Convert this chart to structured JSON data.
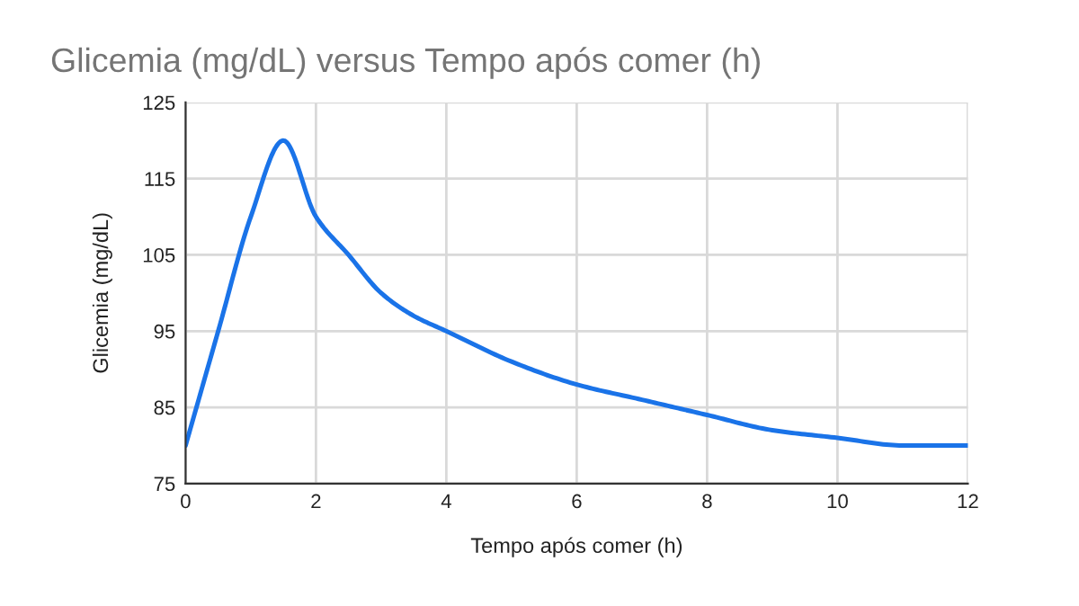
{
  "chart_data": {
    "type": "line",
    "title": "Glicemia (mg/dL) versus Tempo após comer (h)",
    "xlabel": "Tempo após comer (h)",
    "ylabel": "Glicemia (mg/dL)",
    "x": [
      0,
      0.5,
      1,
      1.5,
      2,
      2.5,
      3,
      3.5,
      4,
      5,
      6,
      7,
      8,
      9,
      10,
      11,
      12
    ],
    "series": [
      {
        "color": "#1a73e8",
        "values": [
          80,
          95,
          110,
          120,
          110,
          105,
          100,
          97,
          95,
          91,
          88,
          86,
          84,
          82,
          81,
          80,
          80
        ]
      }
    ],
    "xlim": [
      0,
      12
    ],
    "xticks": [
      0,
      2,
      4,
      6,
      8,
      10,
      12
    ],
    "ylim": [
      75,
      125
    ],
    "yticks": [
      75,
      85,
      95,
      105,
      115,
      125
    ],
    "grid": true,
    "legend": false,
    "marker": "none",
    "line_style": "solid"
  }
}
